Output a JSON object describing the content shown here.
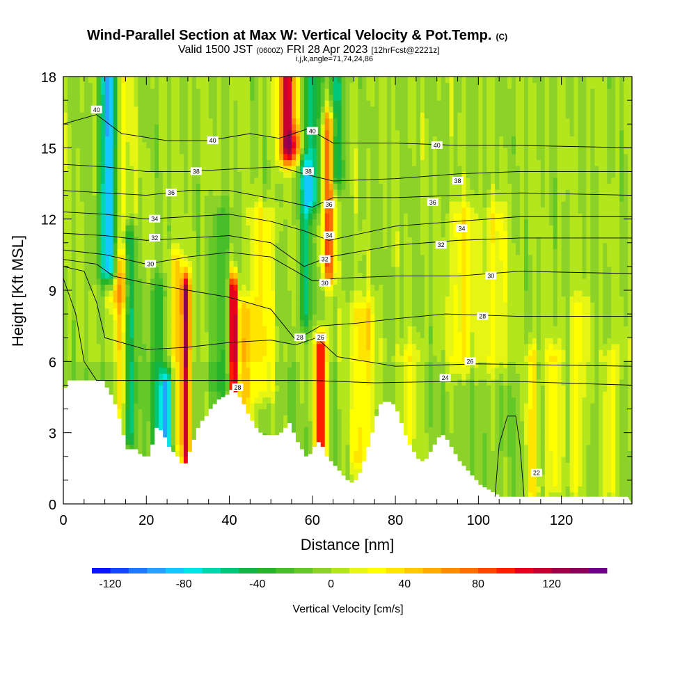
{
  "chart_data": {
    "type": "heatmap",
    "title": "Wind-Parallel Section at Max W: Vertical Velocity & Pot.Temp.",
    "title_mark": "(C)",
    "subtitle_valid": "Valid 1500 JST",
    "subtitle_utc": "(0600Z)",
    "subtitle_date": "FRI 28 Apr 2023",
    "subtitle_fcst": "[12hrFcst@2221z]",
    "subtitle_indices": "i,j,k,angle=71,74,24,86",
    "xlabel": "Distance [nm]",
    "ylabel": "Height [Kft MSL]",
    "xlim": [
      0,
      137
    ],
    "ylim": [
      0,
      18
    ],
    "x_ticks": [
      0,
      20,
      40,
      60,
      80,
      100,
      120
    ],
    "y_ticks": [
      0,
      3,
      6,
      9,
      12,
      15,
      18
    ],
    "x_tick_labels": [
      "0",
      "20",
      "40",
      "60",
      "80",
      "100",
      "120"
    ],
    "y_tick_labels": [
      "0",
      "3",
      "6",
      "9",
      "12",
      "15",
      "18"
    ],
    "colorbar": {
      "label": "Vertical Velocity [cm/s]",
      "min": -130,
      "max": 150,
      "step": 10,
      "tick_values": [
        -120,
        -80,
        -40,
        0,
        40,
        80,
        120
      ],
      "tick_labels": [
        "-120",
        "-80",
        "-40",
        "0",
        "40",
        "80",
        "120"
      ],
      "colors": [
        "#0a14ff",
        "#1446ff",
        "#1e78ff",
        "#28a0ff",
        "#14c8ff",
        "#00e6e6",
        "#00d7aa",
        "#00c878",
        "#14b446",
        "#28b428",
        "#46be28",
        "#64c828",
        "#8cd228",
        "#b4e61e",
        "#e6f514",
        "#ffff00",
        "#ffe600",
        "#ffc800",
        "#ffaa00",
        "#ff8c00",
        "#ff6e00",
        "#ff4600",
        "#ff1e00",
        "#e6001e",
        "#c80032",
        "#a00046",
        "#8c005a",
        "#6e008c"
      ]
    },
    "theta_contours": [
      {
        "value": 22,
        "label": "22",
        "points": [
          [
            104,
            0.3
          ],
          [
            105,
            2.5
          ],
          [
            107,
            3.7
          ],
          [
            109,
            3.7
          ],
          [
            110,
            2.5
          ],
          [
            111,
            0.3
          ]
        ]
      },
      {
        "value": 24,
        "label": "24",
        "points": [
          [
            0,
            9.5
          ],
          [
            3,
            8
          ],
          [
            5,
            6
          ],
          [
            8,
            5.2
          ],
          [
            60,
            5.2
          ],
          [
            75,
            5.1
          ],
          [
            90,
            5.15
          ],
          [
            110,
            5.15
          ],
          [
            137,
            5.0
          ]
        ]
      },
      {
        "value": 26,
        "label": "26",
        "points": [
          [
            0,
            10
          ],
          [
            5,
            9.8
          ],
          [
            8,
            8.5
          ],
          [
            10,
            7
          ],
          [
            20,
            6.5
          ],
          [
            30,
            6.6
          ],
          [
            40,
            6.8
          ],
          [
            50,
            6.9
          ],
          [
            56,
            6.7
          ],
          [
            61,
            7.0
          ],
          [
            66,
            6.2
          ],
          [
            80,
            5.8
          ],
          [
            100,
            5.9
          ],
          [
            137,
            5.8
          ]
        ]
      },
      {
        "value": 28,
        "label": "28",
        "points": [
          [
            0,
            10.3
          ],
          [
            8,
            10.1
          ],
          [
            12,
            9.6
          ],
          [
            20,
            9.3
          ],
          [
            30,
            9.0
          ],
          [
            40,
            8.7
          ],
          [
            50,
            8.2
          ],
          [
            56,
            6.9
          ],
          [
            62,
            7.5
          ],
          [
            70,
            7.6
          ],
          [
            80,
            7.8
          ],
          [
            92,
            8.0
          ],
          [
            110,
            7.9
          ],
          [
            137,
            7.9
          ]
        ]
      },
      {
        "value": 30,
        "label": "30",
        "points": [
          [
            0,
            10.7
          ],
          [
            10,
            10.5
          ],
          [
            20,
            10.1
          ],
          [
            30,
            10.4
          ],
          [
            40,
            10.6
          ],
          [
            50,
            10.4
          ],
          [
            60,
            9.4
          ],
          [
            66,
            9.5
          ],
          [
            80,
            9.6
          ],
          [
            95,
            9.6
          ],
          [
            110,
            9.8
          ],
          [
            137,
            9.7
          ]
        ]
      },
      {
        "value": 32,
        "label": "32",
        "points": [
          [
            0,
            11.4
          ],
          [
            10,
            11.3
          ],
          [
            20,
            11.1
          ],
          [
            30,
            11.2
          ],
          [
            40,
            11.3
          ],
          [
            50,
            11.0
          ],
          [
            58,
            10.0
          ],
          [
            64,
            10.4
          ],
          [
            80,
            10.9
          ],
          [
            95,
            11.1
          ],
          [
            110,
            11.2
          ],
          [
            137,
            11.2
          ]
        ]
      },
      {
        "value": 34,
        "label": "34",
        "points": [
          [
            0,
            12.3
          ],
          [
            10,
            12.2
          ],
          [
            20,
            12.0
          ],
          [
            30,
            12.1
          ],
          [
            40,
            12.2
          ],
          [
            50,
            11.9
          ],
          [
            58,
            11.5
          ],
          [
            64,
            11.1
          ],
          [
            80,
            11.7
          ],
          [
            95,
            11.9
          ],
          [
            110,
            12.1
          ],
          [
            137,
            12.1
          ]
        ]
      },
      {
        "value": 36,
        "label": "36",
        "points": [
          [
            0,
            13.2
          ],
          [
            10,
            13.1
          ],
          [
            20,
            13.0
          ],
          [
            30,
            13.2
          ],
          [
            40,
            13.2
          ],
          [
            52,
            12.8
          ],
          [
            60,
            12.5
          ],
          [
            65,
            12.9
          ],
          [
            80,
            12.9
          ],
          [
            95,
            13.0
          ],
          [
            110,
            13.1
          ],
          [
            137,
            13.0
          ]
        ]
      },
      {
        "value": 38,
        "label": "38",
        "points": [
          [
            0,
            14.3
          ],
          [
            10,
            14.2
          ],
          [
            20,
            14.0
          ],
          [
            30,
            14.0
          ],
          [
            40,
            14.1
          ],
          [
            52,
            14.2
          ],
          [
            58,
            13.9
          ],
          [
            65,
            13.6
          ],
          [
            80,
            13.7
          ],
          [
            95,
            13.9
          ],
          [
            110,
            14.0
          ],
          [
            137,
            14.0
          ]
        ]
      },
      {
        "value": 40,
        "label": "40",
        "points": [
          [
            0,
            16.0
          ],
          [
            8,
            16.4
          ],
          [
            14,
            15.6
          ],
          [
            25,
            15.3
          ],
          [
            35,
            15.3
          ],
          [
            45,
            15.6
          ],
          [
            52,
            15.4
          ],
          [
            59,
            15.8
          ],
          [
            65,
            15.2
          ],
          [
            80,
            15.2
          ],
          [
            95,
            15.1
          ],
          [
            110,
            15.1
          ],
          [
            137,
            15.0
          ]
        ]
      }
    ],
    "terrain_height": [
      4.9,
      5.2,
      5.2,
      5.2,
      5.2,
      5.2,
      5.2,
      5.2,
      5.2,
      5.2,
      4.9,
      4.6,
      4.2,
      3.6,
      2.9,
      2.3,
      2.3,
      2.3,
      2.1,
      2.0,
      2.0,
      2.5,
      3.2,
      3.1,
      2.8,
      2.4,
      2.2,
      2.0,
      1.7,
      1.7,
      2.2,
      2.7,
      3.2,
      3.5,
      3.7,
      4.0,
      4.2,
      4.4,
      4.5,
      4.6,
      4.8,
      4.7,
      4.5,
      4.2,
      3.8,
      3.5,
      3.2,
      3.0,
      2.9,
      2.9,
      2.9,
      2.9,
      3.0,
      3.2,
      3.4,
      3.0,
      2.6,
      2.3,
      2.0,
      2.1,
      2.4,
      2.6,
      2.4,
      2.0,
      1.8,
      1.6,
      1.4,
      1.2,
      1.0,
      0.9,
      1.0,
      1.3,
      1.8,
      2.4,
      3.0,
      3.7,
      4.2,
      4.3,
      4.3,
      4.2,
      3.9,
      3.4,
      2.9,
      2.5,
      2.2,
      1.9,
      1.8,
      1.9,
      2.2,
      2.5,
      2.8,
      2.9,
      2.7,
      2.4,
      2.1,
      1.8,
      1.6,
      1.4,
      1.2,
      1.0,
      0.8,
      0.7,
      0.6,
      0.5,
      0.4,
      0.3,
      0.3,
      0.3,
      0.3,
      0.3,
      0.3,
      0.3,
      0.3,
      0.3,
      0.3,
      0.3,
      0.3,
      0.3,
      0.3,
      0.3,
      0.3,
      0.3,
      0.3,
      0.3,
      0.3,
      0.3,
      0.3,
      0.3,
      0.3,
      0.3,
      0.3,
      0.3,
      0.3,
      0.3,
      0.3,
      0.3
    ],
    "updraft_features": [
      {
        "x": 11,
        "w": 2.0,
        "bottom": 10,
        "top": 18,
        "amp": -120
      },
      {
        "x": 13,
        "w": 3.0,
        "bottom": 9,
        "top": 18,
        "amp": 35
      },
      {
        "x": 16,
        "w": 1.5,
        "bottom": 3,
        "top": 11,
        "amp": -60
      },
      {
        "x": 14,
        "w": 1.8,
        "bottom": 2,
        "top": 10,
        "amp": 40
      },
      {
        "x": 23,
        "w": 2.0,
        "bottom": 3,
        "top": 9,
        "amp": -40
      },
      {
        "x": 25,
        "w": 1.5,
        "bottom": 2,
        "top": 5,
        "amp": -90
      },
      {
        "x": 29.5,
        "w": 1.0,
        "bottom": 2,
        "top": 9,
        "amp": 120
      },
      {
        "x": 27,
        "w": 2.0,
        "bottom": 3,
        "top": 10,
        "amp": 40
      },
      {
        "x": 38,
        "w": 2.0,
        "bottom": 5,
        "top": 12,
        "amp": -30
      },
      {
        "x": 41,
        "w": 1.0,
        "bottom": 4.5,
        "top": 9,
        "amp": 130
      },
      {
        "x": 44,
        "w": 2.0,
        "bottom": 3,
        "top": 8,
        "amp": 45
      },
      {
        "x": 48,
        "w": 3.0,
        "bottom": 5,
        "top": 12,
        "amp": 30
      },
      {
        "x": 54,
        "w": 2.0,
        "bottom": 15,
        "top": 18,
        "amp": 120
      },
      {
        "x": 56,
        "w": 1.5,
        "bottom": 8,
        "top": 15,
        "amp": 60
      },
      {
        "x": 57,
        "w": 2.5,
        "bottom": 8,
        "top": 14,
        "amp": -70
      },
      {
        "x": 60,
        "w": 2.0,
        "bottom": 13,
        "top": 18,
        "amp": -60
      },
      {
        "x": 62,
        "w": 1.3,
        "bottom": 2.5,
        "top": 6.5,
        "amp": 120
      },
      {
        "x": 64,
        "w": 1.5,
        "bottom": 10,
        "top": 16,
        "amp": 80
      },
      {
        "x": 66,
        "w": 1.5,
        "bottom": 14,
        "top": 18,
        "amp": -60
      },
      {
        "x": 72,
        "w": 3.0,
        "bottom": 2,
        "top": 8,
        "amp": 40
      },
      {
        "x": 83,
        "w": 3.0,
        "bottom": 2,
        "top": 6,
        "amp": 25
      },
      {
        "x": 96,
        "w": 3.0,
        "bottom": 6,
        "top": 12,
        "amp": 30
      },
      {
        "x": 104,
        "w": 3.0,
        "bottom": 6,
        "top": 12,
        "amp": 25
      },
      {
        "x": 113,
        "w": 1.5,
        "bottom": 0.5,
        "top": 6,
        "amp": 40
      },
      {
        "x": 118,
        "w": 2.0,
        "bottom": 1,
        "top": 6,
        "amp": 35
      },
      {
        "x": 124,
        "w": 2.0,
        "bottom": 1,
        "top": 8,
        "amp": 30
      },
      {
        "x": 132,
        "w": 2.0,
        "bottom": 1,
        "top": 6,
        "amp": 30
      }
    ],
    "contour_labels": [
      {
        "x": 8,
        "y": 16.6,
        "text": "40"
      },
      {
        "x": 36,
        "y": 15.3,
        "text": "40"
      },
      {
        "x": 60,
        "y": 15.7,
        "text": "40"
      },
      {
        "x": 90,
        "y": 15.1,
        "text": "40"
      },
      {
        "x": 32,
        "y": 14.0,
        "text": "38"
      },
      {
        "x": 59,
        "y": 14.0,
        "text": "38"
      },
      {
        "x": 95,
        "y": 13.6,
        "text": "38"
      },
      {
        "x": 26,
        "y": 13.1,
        "text": "36"
      },
      {
        "x": 64,
        "y": 12.6,
        "text": "36"
      },
      {
        "x": 89,
        "y": 12.7,
        "text": "36"
      },
      {
        "x": 22,
        "y": 12.0,
        "text": "34"
      },
      {
        "x": 64,
        "y": 11.3,
        "text": "34"
      },
      {
        "x": 96,
        "y": 11.6,
        "text": "34"
      },
      {
        "x": 22,
        "y": 11.2,
        "text": "32"
      },
      {
        "x": 63,
        "y": 10.3,
        "text": "32"
      },
      {
        "x": 91,
        "y": 10.9,
        "text": "32"
      },
      {
        "x": 21,
        "y": 10.1,
        "text": "30"
      },
      {
        "x": 63,
        "y": 9.3,
        "text": "30"
      },
      {
        "x": 103,
        "y": 9.6,
        "text": "30"
      },
      {
        "x": 57,
        "y": 7.0,
        "text": "28"
      },
      {
        "x": 101,
        "y": 7.9,
        "text": "28"
      },
      {
        "x": 62,
        "y": 7.0,
        "text": "26"
      },
      {
        "x": 98,
        "y": 6.0,
        "text": "26"
      },
      {
        "x": 92,
        "y": 5.3,
        "text": "24"
      },
      {
        "x": 42,
        "y": 4.9,
        "text": "28"
      },
      {
        "x": 114,
        "y": 1.3,
        "text": "22"
      }
    ]
  }
}
